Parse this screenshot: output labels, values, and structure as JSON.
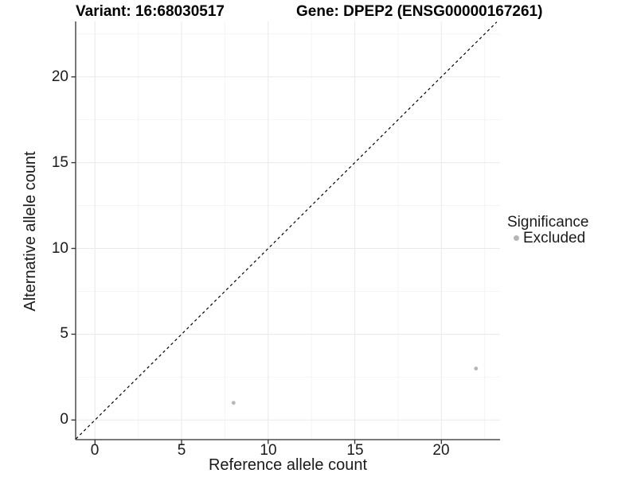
{
  "chart_data": {
    "type": "scatter",
    "titles": {
      "left": "Variant: 16:68030517",
      "right": "Gene: DPEP2 (ENSG00000167261)"
    },
    "xlabel": "Reference allele count",
    "ylabel": "Alternative allele count",
    "x_ticks": [
      "0",
      "5",
      "10",
      "15",
      "20"
    ],
    "y_ticks": [
      "0",
      "5",
      "10",
      "15",
      "20"
    ],
    "x_major": [
      0,
      5,
      10,
      15,
      20
    ],
    "x_minor": [
      2.5,
      7.5,
      12.5,
      17.5,
      22.5
    ],
    "y_major": [
      0,
      5,
      10,
      15,
      20
    ],
    "y_minor": [
      2.5,
      7.5,
      12.5,
      17.5,
      22.5
    ],
    "xlim": [
      -1.1,
      23.2
    ],
    "ylim": [
      -1.1,
      23.2
    ],
    "grid": "on",
    "reference_line": {
      "kind": "identity y=x",
      "style": "dashed",
      "color": "#000000",
      "from": -1.1,
      "to": 23.2
    },
    "series": [
      {
        "name": "Excluded",
        "color": "#b5b5b5",
        "points": [
          [
            8,
            1
          ],
          [
            22,
            3
          ]
        ]
      }
    ],
    "legend": {
      "position": "right",
      "title": "Significance",
      "entries": [
        {
          "label": "Excluded",
          "marker_color": "#b5b5b5"
        }
      ]
    }
  },
  "colors": {
    "background": "#ffffff",
    "grid_major": "#e9e9e9",
    "grid_minor": "#f4f4f4",
    "axis_line": "#4d4d4d",
    "tick": "#3c3c3c",
    "text": "#000000",
    "point": "#b5b5b5"
  }
}
